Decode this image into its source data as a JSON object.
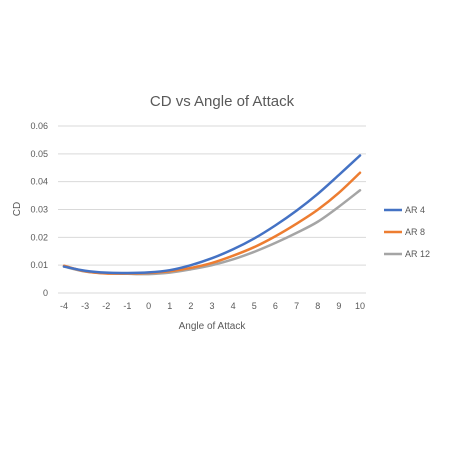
{
  "chart_data": {
    "type": "line",
    "title": "CD vs Angle of Attack",
    "xlabel": "Angle of Attack",
    "ylabel": "CD",
    "x": [
      -4,
      -3,
      -2,
      -1,
      0,
      1,
      2,
      3,
      4,
      5,
      6,
      7,
      8,
      9,
      10
    ],
    "ylim": [
      0,
      0.06
    ],
    "yticks": [
      "0",
      "0.01",
      "0.02",
      "0.03",
      "0.04",
      "0.05",
      "0.06"
    ],
    "xticks": [
      "-4",
      "-3",
      "-2",
      "-1",
      "0",
      "1",
      "2",
      "3",
      "4",
      "5",
      "6",
      "7",
      "8",
      "9",
      "10"
    ],
    "grid": true,
    "legend_position": "right",
    "series": [
      {
        "name": "AR 4",
        "color": "#4472c4",
        "values": [
          0.0095,
          0.008,
          0.0073,
          0.0072,
          0.0074,
          0.0082,
          0.01,
          0.0125,
          0.0157,
          0.0196,
          0.0243,
          0.0296,
          0.0356,
          0.0424,
          0.0494
        ]
      },
      {
        "name": "AR 8",
        "color": "#ed7d31",
        "values": [
          0.0098,
          0.0078,
          0.007,
          0.007,
          0.0072,
          0.0078,
          0.009,
          0.0108,
          0.0134,
          0.0165,
          0.0204,
          0.0249,
          0.0299,
          0.036,
          0.0432
        ]
      },
      {
        "name": "AR 12",
        "color": "#a5a5a5",
        "values": [
          0.0095,
          0.0077,
          0.0071,
          0.0069,
          0.0068,
          0.0073,
          0.0085,
          0.01,
          0.0121,
          0.0148,
          0.018,
          0.0216,
          0.0256,
          0.031,
          0.0369
        ]
      }
    ]
  }
}
